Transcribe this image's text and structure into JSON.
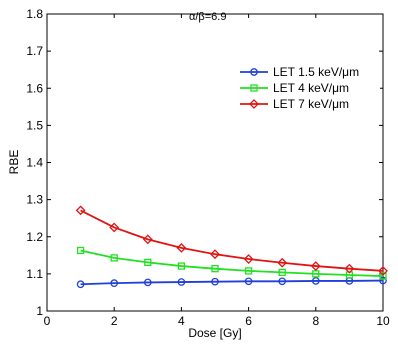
{
  "chart_data": {
    "type": "line",
    "annotation": "α/β=6.9",
    "xlabel": "Dose [Gy]",
    "ylabel": "RBE",
    "xlim": [
      0,
      10
    ],
    "ylim": [
      1,
      1.8
    ],
    "xticks": [
      0,
      2,
      4,
      6,
      8,
      10
    ],
    "yticks": [
      1,
      1.1,
      1.2,
      1.3,
      1.4,
      1.5,
      1.6,
      1.7,
      1.8
    ],
    "x": [
      1,
      2,
      3,
      4,
      5,
      6,
      7,
      8,
      9,
      10
    ],
    "grid": false,
    "legend_position": "top-right",
    "series": [
      {
        "name": "LET 1.5 keV/μm",
        "color": "#1f3fd8",
        "marker": "circle",
        "values": [
          1.072,
          1.075,
          1.077,
          1.078,
          1.079,
          1.08,
          1.08,
          1.081,
          1.081,
          1.082
        ]
      },
      {
        "name": "LET 4 keV/μm",
        "color": "#22e022",
        "marker": "square",
        "values": [
          1.163,
          1.143,
          1.131,
          1.121,
          1.114,
          1.108,
          1.104,
          1.1,
          1.097,
          1.094
        ]
      },
      {
        "name": "LET 7 keV/μm",
        "color": "#e01414",
        "marker": "diamond",
        "values": [
          1.271,
          1.225,
          1.193,
          1.17,
          1.153,
          1.14,
          1.13,
          1.121,
          1.114,
          1.108
        ]
      }
    ]
  }
}
